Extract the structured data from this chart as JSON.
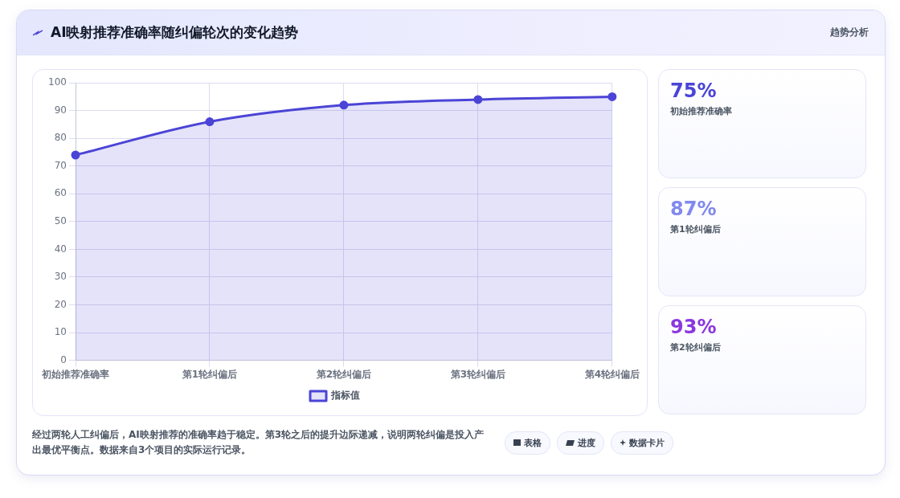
{
  "chart_data": [
    {
      "type": "line",
      "title": "AI映射推荐准确率随纠偏轮次的变化趋势",
      "categories": [
        "初始推荐准确率",
        "第1轮纠偏后",
        "第2轮纠偏后",
        "第3轮纠偏后",
        "第4轮纠偏后"
      ],
      "series": [
        {
          "name": "指标值",
          "color": "#4b44d6",
          "values": [
            74,
            86,
            92,
            94,
            95
          ]
        }
      ],
      "ylim": [
        0,
        100
      ],
      "yticks": [
        0,
        10,
        20,
        30,
        40,
        50,
        60,
        70,
        80,
        90,
        100
      ],
      "grid": true,
      "legend": "bottom",
      "marker": "circle",
      "annotations": [
        "经过两轮人工纠偏后，AI映射推荐的准确率趋于稳定。第3轮之后的提升边际递减，说明两轮纠偏是投入产出最优平衡点。数据来自3个项目的实际运行记录。",
        "表格",
        "进度",
        "数据卡片"
      ]
    },
    {
      "type": "other",
      "title": "趋势分析",
      "annotations": [
        "75%",
        "初始推荐准确率",
        "87%",
        "第1轮纠偏后",
        "93%",
        "第2轮纠偏后"
      ]
    }
  ]
}
